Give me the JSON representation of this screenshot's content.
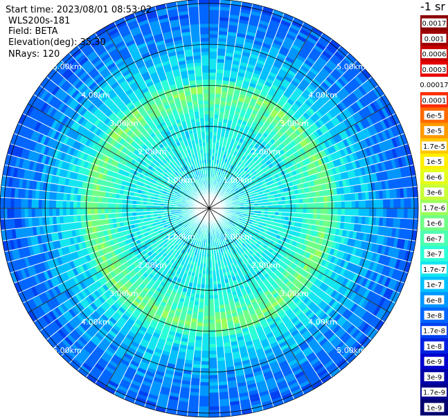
{
  "header": {
    "start_time": "Start time: 2023/08/01 08:53:02",
    "instrument": "WLS200s-181",
    "field": "Field: BETA",
    "elevation": "Elevation(deg): 35.30",
    "nrays": "NRays: 120"
  },
  "colorbar": {
    "unit_title": "-1 sr",
    "labels": [
      "0.0017",
      "0.001",
      "0.0006",
      "0.0003",
      "0.00017",
      "0.0001",
      "6e-5",
      "3e-5",
      "1.7e-5",
      "1e-5",
      "6e-6",
      "3e-6",
      "1.7e-6",
      "1e-6",
      "6e-7",
      "3e-7",
      "1.7e-7",
      "1e-7",
      "6e-8",
      "3e-8",
      "1.7e-8",
      "1e-8",
      "6e-9",
      "3e-9",
      "1.7e-9",
      "1e-9"
    ],
    "colors": [
      "#8b0000",
      "#a00000",
      "#c80000",
      "#e60000",
      "#ffffff",
      "#ff2a00",
      "#ff6a00",
      "#ff9a00",
      "#ffc800",
      "#ffee00",
      "#e4ff1a",
      "#c8ff37",
      "#9cff5a",
      "#70ff86",
      "#4dffb0",
      "#2bffd6",
      "#13e6f0",
      "#00c0ff",
      "#0096ff",
      "#0066ff",
      "#0040f0",
      "#0020e0",
      "#0000cd",
      "#0000a8",
      "#00008b",
      "#000070"
    ]
  },
  "chart_data": {
    "type": "polar_ppi",
    "field": "BETA",
    "nrays": 120,
    "elevation_deg": 35.3,
    "range_rings_km": [
      1,
      2,
      3,
      4,
      5
    ],
    "range_ring_labels": [
      "1.00km",
      "2.00km",
      "3.00km",
      "4.00km",
      "5.00km"
    ],
    "max_range_km": 5.1,
    "radial_line_angles_deg": [
      0,
      30,
      60,
      90,
      120,
      150,
      180,
      210,
      240,
      270,
      300,
      330
    ],
    "range_profile_log10": {
      "range_km": [
        0.0,
        1.0,
        1.5,
        2.0,
        2.6,
        2.9,
        3.2,
        3.6,
        4.0,
        4.6,
        5.1
      ],
      "beta_log10": [
        -6.6,
        -6.6,
        -6.5,
        -6.6,
        -6.1,
        -5.8,
        -6.6,
        -6.8,
        -7.0,
        -7.3,
        -7.4
      ]
    }
  }
}
